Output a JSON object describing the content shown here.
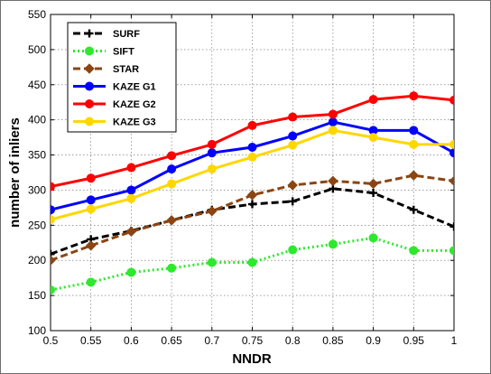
{
  "chart_data": {
    "type": "line",
    "title": "",
    "xlabel": "NNDR",
    "ylabel": "number of inliers",
    "xlim": [
      0.5,
      1.0
    ],
    "ylim": [
      100,
      550
    ],
    "x": [
      0.5,
      0.55,
      0.6,
      0.65,
      0.7,
      0.75,
      0.8,
      0.85,
      0.9,
      0.95,
      1.0
    ],
    "x_tick_labels": [
      "0.5",
      "0.55",
      "0.6",
      "0.65",
      "0.7",
      "0.75",
      "0.8",
      "0.85",
      "0.9",
      "0.95",
      "1"
    ],
    "y_ticks": [
      100,
      150,
      200,
      250,
      300,
      350,
      400,
      450,
      500,
      550
    ],
    "y_tick_labels": [
      "100",
      "150",
      "200",
      "250",
      "300",
      "350",
      "400",
      "450",
      "500",
      "550"
    ],
    "grid": true,
    "legend_position": "top-left",
    "series": [
      {
        "name": "SURF",
        "color": "#000000",
        "dash": "dashed",
        "marker": "plus",
        "values": [
          209,
          230,
          242,
          257,
          272,
          280,
          284,
          302,
          296,
          272,
          248
        ]
      },
      {
        "name": "SIFT",
        "color": "#2ee82e",
        "dash": "dotted",
        "marker": "circle",
        "values": [
          158,
          169,
          183,
          189,
          197,
          197,
          215,
          223,
          232,
          214,
          214
        ]
      },
      {
        "name": "STAR",
        "color": "#8b4513",
        "dash": "dashed",
        "marker": "diamond",
        "values": [
          200,
          221,
          241,
          257,
          270,
          293,
          307,
          313,
          309,
          321,
          313
        ]
      },
      {
        "name": "KAZE G1",
        "color": "#0000ff",
        "dash": "solid",
        "marker": "circle",
        "values": [
          272,
          286,
          300,
          330,
          353,
          361,
          377,
          397,
          385,
          385,
          353
        ]
      },
      {
        "name": "KAZE G2",
        "color": "#ff0000",
        "dash": "solid",
        "marker": "circle",
        "values": [
          305,
          317,
          332,
          349,
          365,
          392,
          404,
          408,
          429,
          434,
          428
        ]
      },
      {
        "name": "KAZE G3",
        "color": "#ffd700",
        "dash": "solid",
        "marker": "circle",
        "values": [
          258,
          273,
          288,
          309,
          330,
          347,
          364,
          385,
          375,
          365,
          365
        ]
      }
    ]
  }
}
